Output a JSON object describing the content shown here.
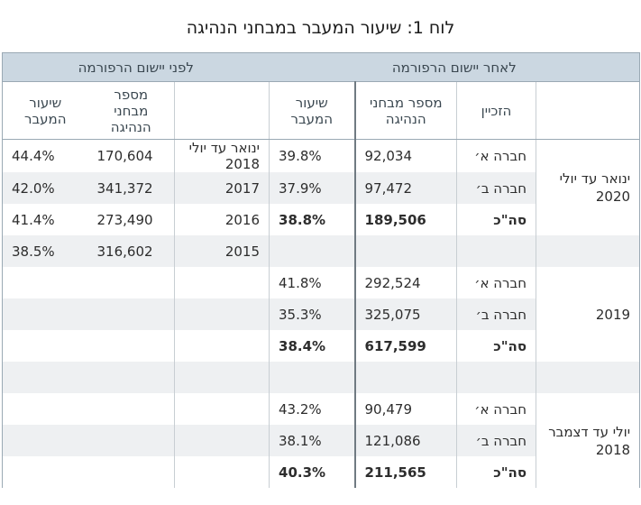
{
  "title": "לוח 1: שיעור המעבר במבחני הנהיגה",
  "headers": {
    "before_group": "לפני יישום הרפורמה",
    "after_group": "לאחר יישום הרפורמה",
    "pass_rate": "שיעור המעבר",
    "num_tests": "מספר מבחני הנהיגה",
    "concessionaire": "הזכיין"
  },
  "before": [
    {
      "period": "ינואר עד יולי 2018",
      "tests": "170,604",
      "rate": "44.4%"
    },
    {
      "period": "2017",
      "tests": "341,372",
      "rate": "42.0%"
    },
    {
      "period": "2016",
      "tests": "273,490",
      "rate": "41.4%"
    },
    {
      "period": "2015",
      "tests": "316,602",
      "rate": "38.5%"
    }
  ],
  "after": [
    {
      "period": "ינואר עד יולי 2020",
      "rows": [
        {
          "company": "חברה א׳",
          "tests": "92,034",
          "rate": "39.8%"
        },
        {
          "company": "חברה ב׳",
          "tests": "97,472",
          "rate": "37.9%"
        },
        {
          "company": "סה\"כ",
          "tests": "189,506",
          "rate": "38.8%"
        }
      ]
    },
    {
      "period": "2019",
      "rows": [
        {
          "company": "חברה א׳",
          "tests": "292,524",
          "rate": "41.8%"
        },
        {
          "company": "חברה ב׳",
          "tests": "325,075",
          "rate": "35.3%"
        },
        {
          "company": "סה\"כ",
          "tests": "617,599",
          "rate": "38.4%"
        }
      ]
    },
    {
      "period": "יולי עד דצמבר 2018",
      "rows": [
        {
          "company": "חברה א׳",
          "tests": "90,479",
          "rate": "43.2%"
        },
        {
          "company": "חברה ב׳",
          "tests": "121,086",
          "rate": "38.1%"
        },
        {
          "company": "סה\"כ",
          "tests": "211,565",
          "rate": "40.3%"
        }
      ]
    }
  ]
}
